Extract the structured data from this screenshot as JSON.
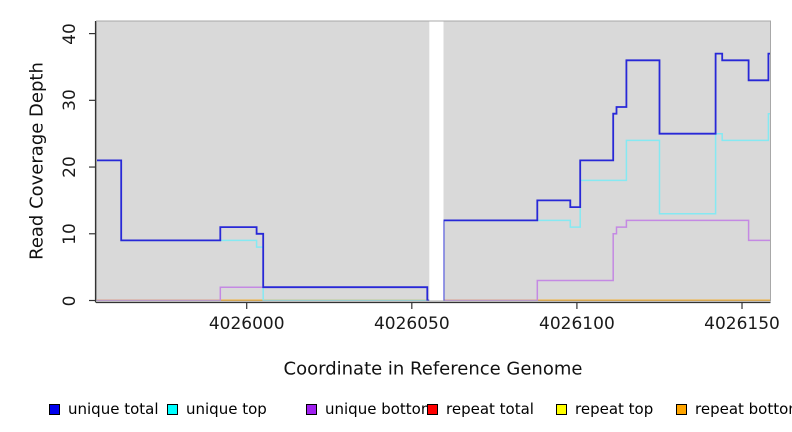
{
  "chart_data": {
    "type": "line",
    "style": "step",
    "title": "",
    "xlabel": "Coordinate in Reference Genome",
    "ylabel": "Read Coverage Depth",
    "plot_background": "#d9d9d9",
    "xlim": [
      4025954.6,
      4026158.7
    ],
    "ylim": [
      0,
      40
    ],
    "x_ticks": [
      4026000,
      4026050,
      4026100,
      4026150
    ],
    "x_tick_labels": [
      "4026000",
      "4026050",
      "4026100",
      "4026150"
    ],
    "y_ticks": [
      0,
      10,
      20,
      30,
      40
    ],
    "y_tick_labels": [
      "0",
      "10",
      "20",
      "30",
      "40"
    ],
    "grid": false,
    "legend_position": "bottom",
    "no_data_gap": {
      "from": 4026055.3,
      "to": 4026059.6
    },
    "series": [
      {
        "name": "unique total",
        "legend_color": "#0000EE",
        "line_color": "#2828d7",
        "segments": [
          {
            "points": [
              [
                4025954.6,
                21
              ],
              [
                4025962,
                9
              ],
              [
                4025992,
                11
              ],
              [
                4026003,
                10
              ],
              [
                4026005,
                2
              ],
              [
                4026054.7,
                0
              ]
            ],
            "end": 4026055.3
          },
          {
            "points": [
              [
                4026059.6,
                0
              ],
              [
                4026059.6,
                12
              ],
              [
                4026088,
                15
              ],
              [
                4026098,
                14
              ],
              [
                4026101,
                21
              ],
              [
                4026111,
                28
              ],
              [
                4026112,
                29
              ],
              [
                4026115,
                36
              ],
              [
                4026125,
                25
              ],
              [
                4026142,
                37
              ],
              [
                4026144,
                36
              ],
              [
                4026152,
                33
              ],
              [
                4026158,
                37
              ]
            ],
            "end": 4026158.7
          }
        ]
      },
      {
        "name": "unique top",
        "legend_color": "#00FFFF",
        "line_color": "#85e9f2",
        "segments": [
          {
            "points": [
              [
                4025954.6,
                21
              ],
              [
                4025962,
                9
              ],
              [
                4026003,
                8
              ],
              [
                4026005,
                0
              ]
            ],
            "end": 4026055.3
          },
          {
            "points": [
              [
                4026059.6,
                0
              ],
              [
                4026059.6,
                12
              ],
              [
                4026098,
                11
              ],
              [
                4026101,
                18
              ],
              [
                4026115,
                24
              ],
              [
                4026125,
                13
              ],
              [
                4026142,
                25
              ],
              [
                4026144,
                24
              ],
              [
                4026158,
                28
              ]
            ],
            "end": 4026158.7
          }
        ]
      },
      {
        "name": "unique bottom",
        "legend_color": "#A020F0",
        "line_color": "#c489e3",
        "segments": [
          {
            "points": [
              [
                4025954.6,
                0
              ],
              [
                4025992,
                2
              ],
              [
                4026054.7,
                0
              ]
            ],
            "end": 4026055.3
          },
          {
            "points": [
              [
                4026059.6,
                0
              ],
              [
                4026088,
                3
              ],
              [
                4026111,
                10
              ],
              [
                4026112,
                11
              ],
              [
                4026115,
                12
              ],
              [
                4026152,
                9
              ]
            ],
            "end": 4026158.7
          }
        ]
      },
      {
        "name": "repeat total",
        "legend_color": "#FF0000",
        "line_color": "#e0506e",
        "segments": [
          {
            "points": [
              [
                4025954.6,
                0
              ]
            ],
            "end": 4026055.3
          },
          {
            "points": [
              [
                4026059.6,
                0
              ]
            ],
            "end": 4026158.7
          }
        ]
      },
      {
        "name": "repeat top",
        "legend_color": "#FFFF00",
        "line_color": "#f0e542",
        "segments": [
          {
            "points": [
              [
                4025954.6,
                0
              ]
            ],
            "end": 4026055.3
          },
          {
            "points": [
              [
                4026059.6,
                0
              ]
            ],
            "end": 4026158.7
          }
        ]
      },
      {
        "name": "repeat bottom",
        "legend_color": "#FFA500",
        "line_color": "#ffa500",
        "segments": [
          {
            "points": [
              [
                4025954.6,
                0
              ]
            ],
            "end": 4026055.3
          },
          {
            "points": [
              [
                4026059.6,
                0
              ]
            ],
            "end": 4026158.7
          }
        ]
      }
    ]
  }
}
